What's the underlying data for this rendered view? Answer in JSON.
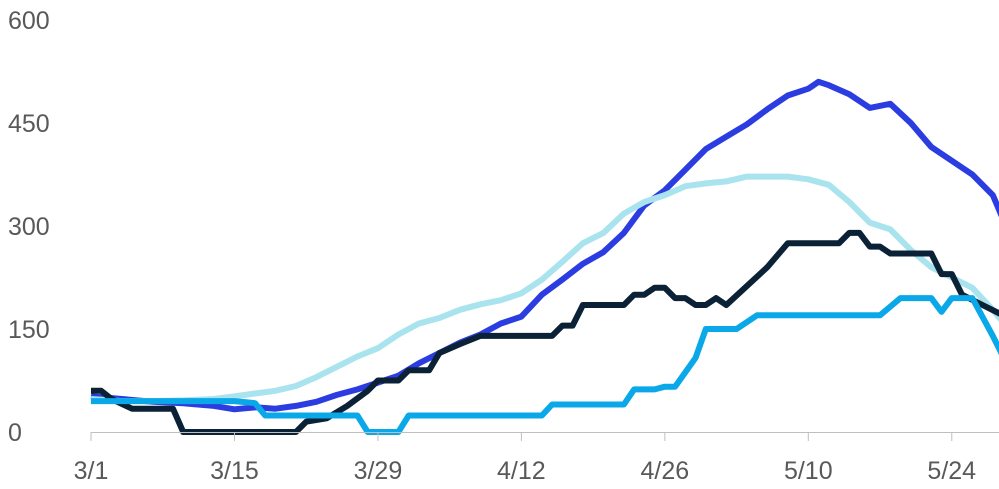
{
  "chart_data": {
    "type": "line",
    "title": "",
    "xlabel": "",
    "ylabel": "",
    "ylim": [
      0,
      600
    ],
    "xlim_day": [
      0,
      89
    ],
    "y_ticks": [
      0,
      150,
      300,
      450,
      600
    ],
    "x_ticks": [
      {
        "label": "3/1",
        "day": 0
      },
      {
        "label": "3/15",
        "day": 14
      },
      {
        "label": "3/29",
        "day": 28
      },
      {
        "label": "4/12",
        "day": 42
      },
      {
        "label": "4/26",
        "day": 56
      },
      {
        "label": "5/10",
        "day": 70
      },
      {
        "label": "5/24",
        "day": 84
      }
    ],
    "grid": false,
    "legend": "none",
    "series": [
      {
        "color": "#2B3CE0",
        "points": [
          [
            0,
            52
          ],
          [
            3,
            48
          ],
          [
            6,
            44
          ],
          [
            9,
            42
          ],
          [
            12,
            38
          ],
          [
            14,
            33
          ],
          [
            16,
            36
          ],
          [
            18,
            34
          ],
          [
            20,
            38
          ],
          [
            22,
            44
          ],
          [
            24,
            54
          ],
          [
            26,
            62
          ],
          [
            28,
            72
          ],
          [
            30,
            82
          ],
          [
            32,
            100
          ],
          [
            34,
            115
          ],
          [
            36,
            130
          ],
          [
            38,
            142
          ],
          [
            40,
            158
          ],
          [
            42,
            168
          ],
          [
            44,
            200
          ],
          [
            46,
            222
          ],
          [
            48,
            245
          ],
          [
            50,
            262
          ],
          [
            52,
            290
          ],
          [
            54,
            330
          ],
          [
            56,
            352
          ],
          [
            58,
            382
          ],
          [
            60,
            412
          ],
          [
            62,
            430
          ],
          [
            64,
            448
          ],
          [
            66,
            470
          ],
          [
            68,
            490
          ],
          [
            70,
            500
          ],
          [
            71,
            510
          ],
          [
            72,
            505
          ],
          [
            74,
            492
          ],
          [
            76,
            472
          ],
          [
            78,
            478
          ],
          [
            80,
            450
          ],
          [
            82,
            415
          ],
          [
            84,
            395
          ],
          [
            86,
            375
          ],
          [
            88,
            345
          ],
          [
            89,
            310
          ]
        ]
      },
      {
        "color": "#A8E3EE",
        "points": [
          [
            0,
            48
          ],
          [
            3,
            45
          ],
          [
            6,
            45
          ],
          [
            9,
            46
          ],
          [
            12,
            48
          ],
          [
            14,
            52
          ],
          [
            16,
            56
          ],
          [
            18,
            60
          ],
          [
            20,
            67
          ],
          [
            22,
            80
          ],
          [
            24,
            95
          ],
          [
            26,
            110
          ],
          [
            28,
            122
          ],
          [
            30,
            142
          ],
          [
            32,
            158
          ],
          [
            34,
            166
          ],
          [
            36,
            178
          ],
          [
            38,
            186
          ],
          [
            40,
            192
          ],
          [
            42,
            202
          ],
          [
            44,
            222
          ],
          [
            46,
            248
          ],
          [
            48,
            275
          ],
          [
            50,
            290
          ],
          [
            52,
            318
          ],
          [
            54,
            335
          ],
          [
            56,
            345
          ],
          [
            58,
            358
          ],
          [
            60,
            362
          ],
          [
            62,
            365
          ],
          [
            64,
            372
          ],
          [
            66,
            372
          ],
          [
            68,
            372
          ],
          [
            70,
            368
          ],
          [
            72,
            360
          ],
          [
            74,
            335
          ],
          [
            76,
            305
          ],
          [
            78,
            295
          ],
          [
            80,
            265
          ],
          [
            82,
            240
          ],
          [
            84,
            225
          ],
          [
            86,
            210
          ],
          [
            88,
            178
          ],
          [
            89,
            160
          ]
        ]
      },
      {
        "color": "#0B2135",
        "points": [
          [
            0,
            60
          ],
          [
            1,
            60
          ],
          [
            2,
            48
          ],
          [
            4,
            34
          ],
          [
            8,
            34
          ],
          [
            9,
            0
          ],
          [
            20,
            0
          ],
          [
            21,
            15
          ],
          [
            23,
            20
          ],
          [
            25,
            38
          ],
          [
            27,
            60
          ],
          [
            28,
            75
          ],
          [
            30,
            75
          ],
          [
            31,
            90
          ],
          [
            33,
            90
          ],
          [
            34,
            115
          ],
          [
            36,
            128
          ],
          [
            38,
            140
          ],
          [
            45,
            140
          ],
          [
            46,
            155
          ],
          [
            47,
            155
          ],
          [
            48,
            185
          ],
          [
            52,
            185
          ],
          [
            53,
            200
          ],
          [
            54,
            200
          ],
          [
            55,
            210
          ],
          [
            56,
            210
          ],
          [
            57,
            195
          ],
          [
            58,
            195
          ],
          [
            59,
            185
          ],
          [
            60,
            185
          ],
          [
            61,
            195
          ],
          [
            62,
            185
          ],
          [
            66,
            240
          ],
          [
            68,
            275
          ],
          [
            73,
            275
          ],
          [
            74,
            290
          ],
          [
            75,
            290
          ],
          [
            76,
            270
          ],
          [
            77,
            270
          ],
          [
            78,
            260
          ],
          [
            82,
            260
          ],
          [
            83,
            230
          ],
          [
            84,
            230
          ],
          [
            85,
            200
          ],
          [
            87,
            185
          ],
          [
            89,
            170
          ]
        ]
      },
      {
        "color": "#0AA8E8",
        "points": [
          [
            0,
            45
          ],
          [
            3,
            45
          ],
          [
            6,
            45
          ],
          [
            9,
            45
          ],
          [
            12,
            45
          ],
          [
            14,
            45
          ],
          [
            16,
            42
          ],
          [
            17,
            24
          ],
          [
            26,
            24
          ],
          [
            27,
            0
          ],
          [
            30,
            0
          ],
          [
            31,
            24
          ],
          [
            44,
            24
          ],
          [
            45,
            40
          ],
          [
            52,
            40
          ],
          [
            53,
            62
          ],
          [
            55,
            62
          ],
          [
            56,
            66
          ],
          [
            57,
            66
          ],
          [
            59,
            108
          ],
          [
            60,
            150
          ],
          [
            63,
            150
          ],
          [
            65,
            170
          ],
          [
            77,
            170
          ],
          [
            79,
            195
          ],
          [
            82,
            195
          ],
          [
            83,
            175
          ],
          [
            84,
            195
          ],
          [
            86,
            195
          ],
          [
            88,
            140
          ],
          [
            89,
            110
          ]
        ]
      }
    ]
  }
}
